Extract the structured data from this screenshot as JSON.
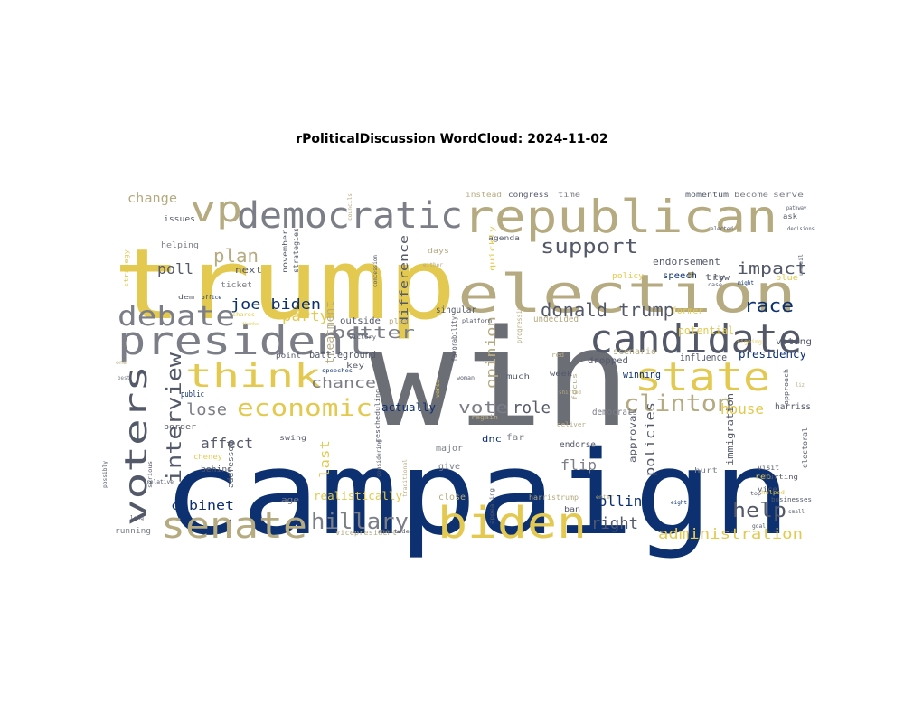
{
  "title": "rPoliticalDiscussion WordCloud: 2024-11-02",
  "colors": {
    "gold": "#e3c94f",
    "gray": "#6c6e76",
    "navy": "#0d3070",
    "tan": "#b5aa80",
    "slate": "#54596a",
    "midgray": "#7b7e87"
  },
  "words": [
    {
      "text": "campaign",
      "color": "navy"
    },
    {
      "text": "win",
      "color": "gray"
    },
    {
      "text": "trump",
      "color": "gold"
    },
    {
      "text": "election",
      "color": "tan"
    },
    {
      "text": "republican",
      "color": "tan"
    },
    {
      "text": "president",
      "color": "midgray"
    },
    {
      "text": "candidate",
      "color": "slate"
    },
    {
      "text": "state",
      "color": "gold"
    },
    {
      "text": "biden",
      "color": "gold"
    },
    {
      "text": "democratic",
      "color": "midgray"
    },
    {
      "text": "senate",
      "color": "tan"
    },
    {
      "text": "voters",
      "color": "slate"
    },
    {
      "text": "think",
      "color": "gold"
    },
    {
      "text": "debate",
      "color": "midgray"
    },
    {
      "text": "vp",
      "color": "tan"
    },
    {
      "text": "economic",
      "color": "gold"
    },
    {
      "text": "clinton",
      "color": "tan"
    },
    {
      "text": "hillary",
      "color": "midgray"
    },
    {
      "text": "support",
      "color": "slate"
    },
    {
      "text": "donald trump",
      "color": "slate"
    },
    {
      "text": "interview",
      "color": "slate"
    },
    {
      "text": "help",
      "color": "slate"
    },
    {
      "text": "impact",
      "color": "slate"
    },
    {
      "text": "race",
      "color": "navy"
    },
    {
      "text": "plan",
      "color": "tan"
    },
    {
      "text": "poll",
      "color": "slate"
    },
    {
      "text": "joe biden",
      "color": "navy"
    },
    {
      "text": "better",
      "color": "midgray"
    },
    {
      "text": "right",
      "color": "slate"
    },
    {
      "text": "vote",
      "color": "midgray"
    },
    {
      "text": "role",
      "color": "slate"
    },
    {
      "text": "lose",
      "color": "midgray"
    },
    {
      "text": "chance",
      "color": "midgray"
    },
    {
      "text": "affect",
      "color": "slate"
    },
    {
      "text": "cabinet",
      "color": "navy"
    },
    {
      "text": "flip",
      "color": "midgray"
    },
    {
      "text": "polling",
      "color": "navy"
    },
    {
      "text": "house",
      "color": "gold"
    },
    {
      "text": "party",
      "color": "gold"
    },
    {
      "text": "opinion",
      "color": "tan"
    },
    {
      "text": "policies",
      "color": "slate"
    },
    {
      "text": "administration",
      "color": "gold"
    },
    {
      "text": "change",
      "color": "tan"
    },
    {
      "text": "last",
      "color": "gold"
    },
    {
      "text": "realistically",
      "color": "gold"
    },
    {
      "text": "actually",
      "color": "navy"
    },
    {
      "text": "treatment",
      "color": "tan"
    },
    {
      "text": "battleground",
      "color": "slate"
    },
    {
      "text": "presidency",
      "color": "navy"
    },
    {
      "text": "potential",
      "color": "gold"
    },
    {
      "text": "endorsement",
      "color": "slate"
    },
    {
      "text": "difference",
      "color": "slate"
    },
    {
      "text": "influence",
      "color": "slate"
    },
    {
      "text": "immigration",
      "color": "slate"
    },
    {
      "text": "voting",
      "color": "slate"
    },
    {
      "text": "harriss",
      "color": "slate"
    },
    {
      "text": "outside",
      "color": "slate"
    },
    {
      "text": "singular",
      "color": "slate"
    },
    {
      "text": "undecided",
      "color": "tan"
    },
    {
      "text": "scenario",
      "color": "tan"
    },
    {
      "text": "dropped",
      "color": "slate"
    },
    {
      "text": "winning",
      "color": "navy"
    },
    {
      "text": "approval",
      "color": "slate"
    },
    {
      "text": "endorse",
      "color": "slate"
    },
    {
      "text": "major",
      "color": "midgray"
    },
    {
      "text": "give",
      "color": "midgray"
    },
    {
      "text": "close",
      "color": "tan"
    },
    {
      "text": "dnc",
      "color": "navy"
    },
    {
      "text": "far",
      "color": "midgray"
    },
    {
      "text": "democrats",
      "color": "midgray"
    },
    {
      "text": "speech",
      "color": "navy"
    },
    {
      "text": "try",
      "color": "slate"
    },
    {
      "text": "former",
      "color": "gold"
    },
    {
      "text": "low",
      "color": "slate"
    },
    {
      "text": "policy",
      "color": "gold"
    },
    {
      "text": "blue",
      "color": "gold"
    },
    {
      "text": "next",
      "color": "slate"
    },
    {
      "text": "ticket",
      "color": "midgray"
    },
    {
      "text": "helping",
      "color": "midgray"
    },
    {
      "text": "issues",
      "color": "slate"
    },
    {
      "text": "public",
      "color": "navy"
    },
    {
      "text": "border",
      "color": "slate"
    },
    {
      "text": "behind",
      "color": "slate"
    },
    {
      "text": "addressed",
      "color": "slate"
    },
    {
      "text": "age",
      "color": "midgray"
    },
    {
      "text": "running",
      "color": "midgray"
    },
    {
      "text": "cheney",
      "color": "gold"
    },
    {
      "text": "swing",
      "color": "slate"
    },
    {
      "text": "point",
      "color": "slate"
    },
    {
      "text": "key",
      "color": "slate"
    },
    {
      "text": "much",
      "color": "slate"
    },
    {
      "text": "week",
      "color": "slate"
    },
    {
      "text": "play",
      "color": "tan"
    },
    {
      "text": "days",
      "color": "tan"
    },
    {
      "text": "agenda",
      "color": "slate"
    },
    {
      "text": "quickly",
      "color": "gold"
    },
    {
      "text": "november",
      "color": "slate"
    },
    {
      "text": "strategies",
      "color": "slate"
    },
    {
      "text": "instead",
      "color": "tan"
    },
    {
      "text": "congress",
      "color": "slate"
    },
    {
      "text": "time",
      "color": "midgray"
    },
    {
      "text": "momentum",
      "color": "slate"
    },
    {
      "text": "become",
      "color": "midgray"
    },
    {
      "text": "serve",
      "color": "midgray"
    },
    {
      "text": "ask",
      "color": "slate"
    },
    {
      "text": "vice",
      "color": "slate"
    },
    {
      "text": "visit",
      "color": "slate"
    },
    {
      "text": "rep",
      "color": "gold"
    },
    {
      "text": "hurt",
      "color": "midgray"
    },
    {
      "text": "ban",
      "color": "slate"
    },
    {
      "text": "harristrump",
      "color": "tan"
    },
    {
      "text": "vicepresident",
      "color": "tan"
    },
    {
      "text": "progressive",
      "color": "tan"
    },
    {
      "text": "favorability",
      "color": "slate"
    },
    {
      "text": "deliver",
      "color": "tan"
    },
    {
      "text": "regain",
      "color": "tan"
    },
    {
      "text": "electoral",
      "color": "slate"
    },
    {
      "text": "strategy",
      "color": "gold"
    },
    {
      "text": "businesses",
      "color": "slate"
    },
    {
      "text": "hurting",
      "color": "slate"
    },
    {
      "text": "approach",
      "color": "slate"
    },
    {
      "text": "focus",
      "color": "tan"
    },
    {
      "text": "might",
      "color": "navy"
    },
    {
      "text": "elected",
      "color": "slate"
    },
    {
      "text": "decisions",
      "color": "slate"
    },
    {
      "text": "dem",
      "color": "slate"
    },
    {
      "text": "office",
      "color": "navy"
    },
    {
      "text": "traditional",
      "color": "tan"
    },
    {
      "text": "considering",
      "color": "slate"
    },
    {
      "text": "rescheduling",
      "color": "slate"
    },
    {
      "text": "speeches",
      "color": "navy"
    },
    {
      "text": "woman",
      "color": "slate"
    },
    {
      "text": "victory",
      "color": "slate"
    },
    {
      "text": "platform",
      "color": "slate"
    },
    {
      "text": "enter",
      "color": "tan"
    },
    {
      "text": "shifted",
      "color": "tan"
    },
    {
      "text": "shares",
      "color": "gold"
    },
    {
      "text": "relative",
      "color": "slate"
    },
    {
      "text": "best",
      "color": "midgray"
    },
    {
      "text": "long",
      "color": "slate"
    },
    {
      "text": "goal",
      "color": "slate"
    },
    {
      "text": "small",
      "color": "slate"
    },
    {
      "text": "pathway",
      "color": "slate"
    },
    {
      "text": "one",
      "color": "tan"
    },
    {
      "text": "top",
      "color": "slate"
    },
    {
      "text": "liz",
      "color": "tan"
    },
    {
      "text": "signing",
      "color": "gold"
    },
    {
      "text": "eight",
      "color": "navy"
    },
    {
      "text": "case",
      "color": "slate"
    },
    {
      "text": "unveil",
      "color": "slate"
    },
    {
      "text": "helped",
      "color": "gold"
    },
    {
      "text": "versa",
      "color": "gold"
    },
    {
      "text": "red",
      "color": "tan"
    },
    {
      "text": "attitude",
      "color": "slate"
    },
    {
      "text": "possibly",
      "color": "slate"
    },
    {
      "text": "serious",
      "color": "slate"
    },
    {
      "text": "appealing",
      "color": "slate"
    },
    {
      "text": "either",
      "color": "tan"
    },
    {
      "text": "concession",
      "color": "slate"
    },
    {
      "text": "councils",
      "color": "tan"
    },
    {
      "text": "thanks",
      "color": "gold"
    }
  ]
}
